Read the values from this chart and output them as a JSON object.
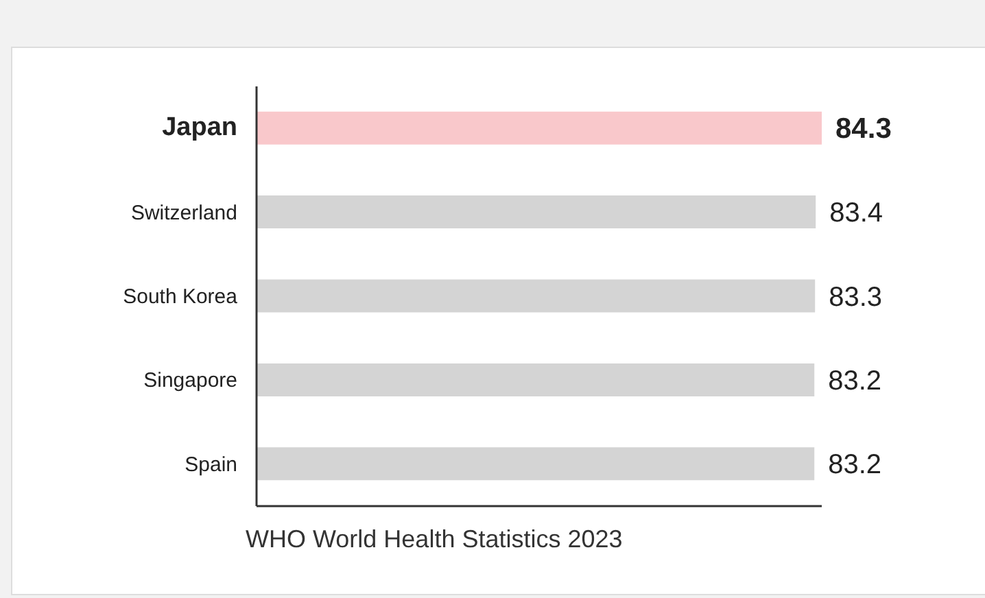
{
  "chart_data": {
    "type": "bar",
    "orientation": "horizontal",
    "categories": [
      "Japan",
      "Switzerland",
      "South Korea",
      "Singapore",
      "Spain"
    ],
    "values": [
      84.3,
      83.4,
      83.3,
      83.2,
      83.2
    ],
    "colors": [
      "#f9c8cb",
      "#d4d4d4",
      "#d4d4d4",
      "#d4d4d4",
      "#d4d4d4"
    ],
    "data_labels": true,
    "grid": false,
    "legend": false,
    "annotations": [
      "WHO World Health Statistics 2023"
    ]
  }
}
